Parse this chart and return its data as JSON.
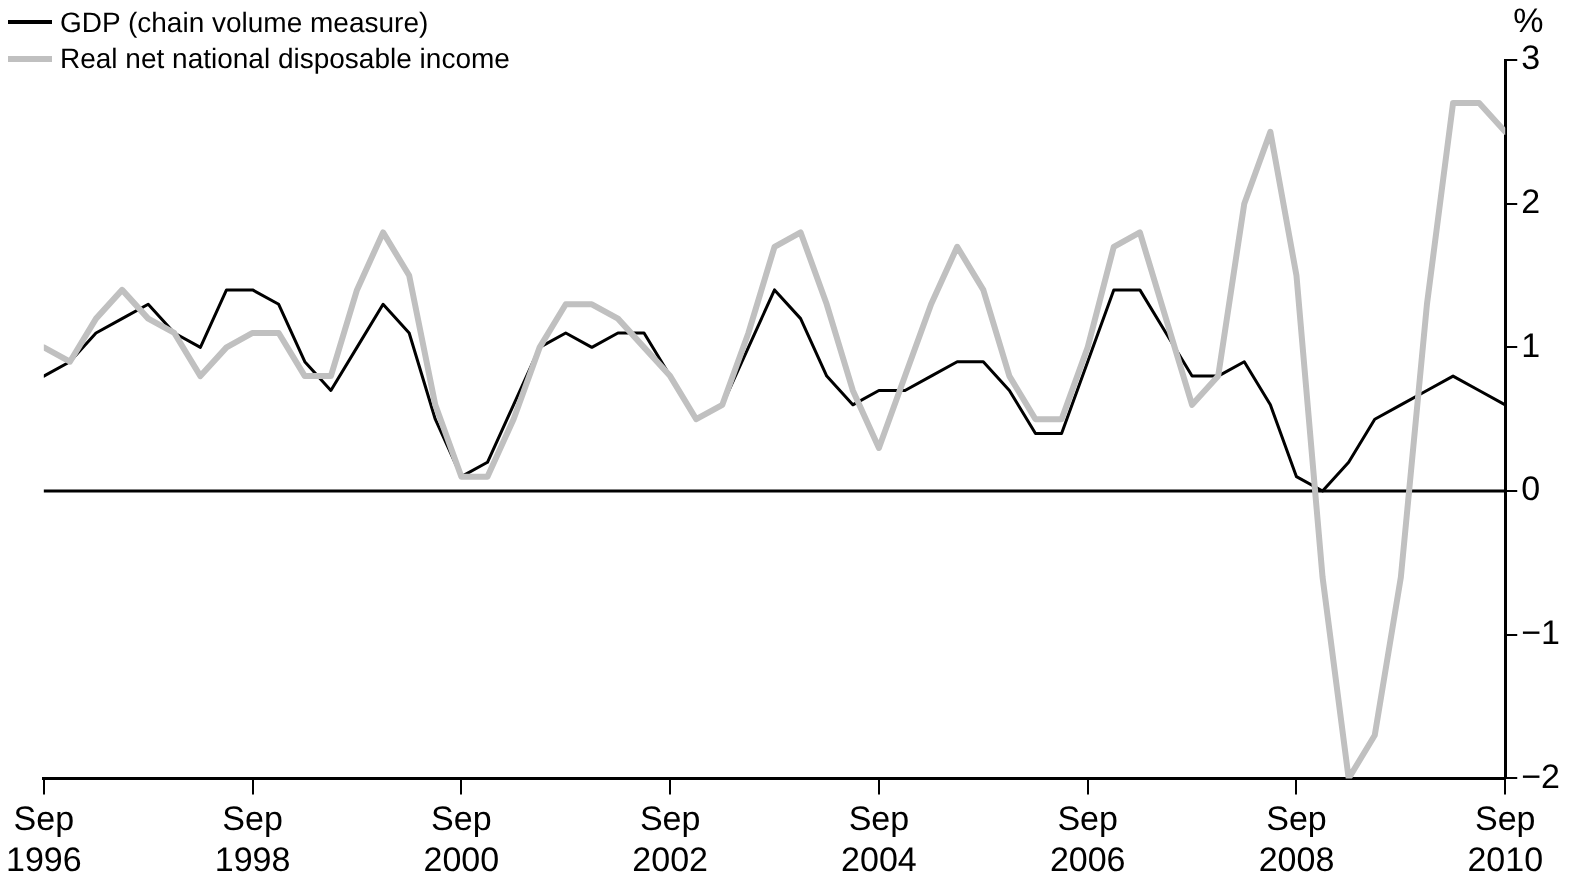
{
  "chart_data": {
    "type": "line",
    "ylabel": "%",
    "x": [
      "1996-09",
      "1996-12",
      "1997-03",
      "1997-06",
      "1997-09",
      "1997-12",
      "1998-03",
      "1998-06",
      "1998-09",
      "1998-12",
      "1999-03",
      "1999-06",
      "1999-09",
      "1999-12",
      "2000-03",
      "2000-06",
      "2000-09",
      "2000-12",
      "2001-03",
      "2001-06",
      "2001-09",
      "2001-12",
      "2002-03",
      "2002-06",
      "2002-09",
      "2002-12",
      "2003-03",
      "2003-06",
      "2003-09",
      "2003-12",
      "2004-03",
      "2004-06",
      "2004-09",
      "2004-12",
      "2005-03",
      "2005-06",
      "2005-09",
      "2005-12",
      "2006-03",
      "2006-06",
      "2006-09",
      "2006-12",
      "2007-03",
      "2007-06",
      "2007-09",
      "2007-12",
      "2008-03",
      "2008-06",
      "2008-09",
      "2008-12",
      "2009-03",
      "2009-06",
      "2009-09",
      "2009-12",
      "2010-03",
      "2010-06",
      "2010-09"
    ],
    "series": [
      {
        "name": "GDP (chain volume measure)",
        "color": "#000000",
        "values": [
          0.8,
          0.9,
          1.1,
          1.2,
          1.3,
          1.1,
          1.0,
          1.4,
          1.4,
          1.3,
          0.9,
          0.7,
          1.0,
          1.3,
          1.1,
          0.5,
          0.1,
          0.2,
          0.6,
          1.0,
          1.1,
          1.0,
          1.1,
          1.1,
          0.8,
          0.5,
          0.6,
          1.0,
          1.4,
          1.2,
          0.8,
          0.6,
          0.7,
          0.7,
          0.8,
          0.9,
          0.9,
          0.7,
          0.4,
          0.4,
          0.9,
          1.4,
          1.4,
          1.1,
          0.8,
          0.8,
          0.9,
          0.6,
          0.1,
          0.0,
          0.2,
          0.5,
          0.6,
          0.7,
          0.8,
          0.7,
          0.6
        ]
      },
      {
        "name": "Real net national disposable income",
        "color": "#c0c0c0",
        "values": [
          1.0,
          0.9,
          1.2,
          1.4,
          1.2,
          1.1,
          0.8,
          1.0,
          1.1,
          1.1,
          0.8,
          0.8,
          1.4,
          1.8,
          1.5,
          0.6,
          0.1,
          0.1,
          0.5,
          1.0,
          1.3,
          1.3,
          1.2,
          1.0,
          0.8,
          0.5,
          0.6,
          1.1,
          1.7,
          1.8,
          1.3,
          0.7,
          0.3,
          0.8,
          1.3,
          1.7,
          1.4,
          0.8,
          0.5,
          0.5,
          1.0,
          1.7,
          1.8,
          1.2,
          0.6,
          0.8,
          2.0,
          2.5,
          1.5,
          -0.6,
          -2.0,
          -1.7,
          -0.6,
          1.3,
          2.7,
          2.7,
          2.5
        ]
      }
    ],
    "xlim": [
      "1996-09",
      "2010-09"
    ],
    "xticks": [
      {
        "value": "1996-09",
        "label": "Sep 1996"
      },
      {
        "value": "1998-09",
        "label": "Sep 1998"
      },
      {
        "value": "2000-09",
        "label": "Sep 2000"
      },
      {
        "value": "2002-09",
        "label": "Sep 2002"
      },
      {
        "value": "2004-09",
        "label": "Sep 2004"
      },
      {
        "value": "2006-09",
        "label": "Sep 2006"
      },
      {
        "value": "2008-09",
        "label": "Sep 2008"
      },
      {
        "value": "2010-09",
        "label": "Sep 2010"
      }
    ],
    "ylim": [
      -2,
      3
    ],
    "yticks": [
      -2,
      -1,
      0,
      1,
      2,
      3
    ],
    "ref_lines": [
      {
        "axis": "y",
        "value": 0,
        "color": "#000000"
      }
    ],
    "grid": false,
    "legend": "top left",
    "marker": "none",
    "line_style": "solid"
  }
}
